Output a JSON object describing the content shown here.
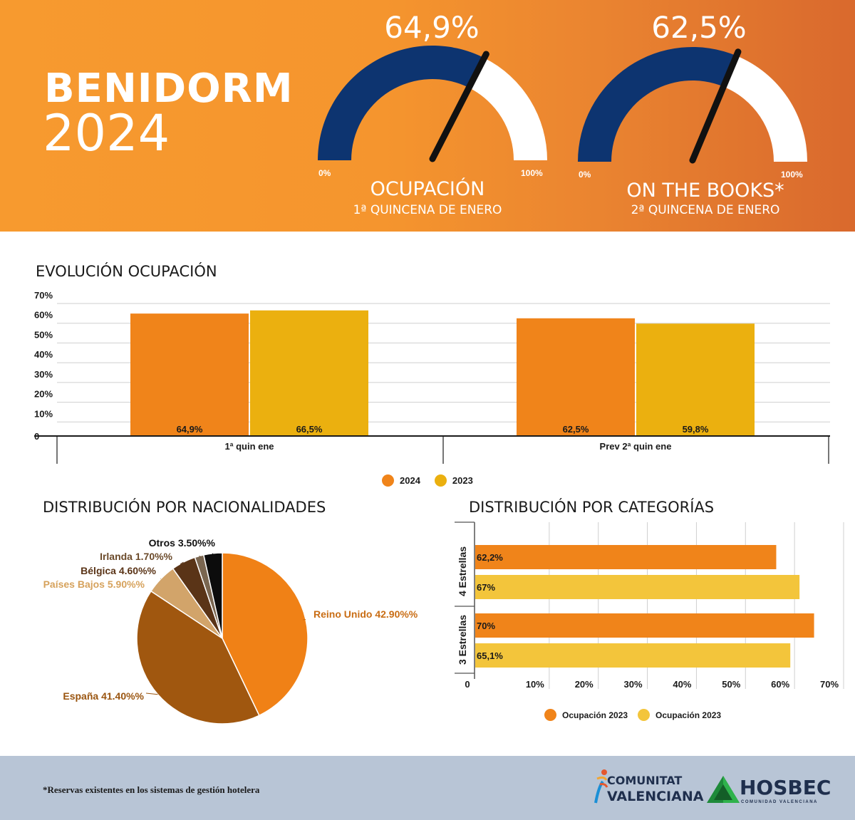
{
  "header": {
    "city": "BENIDORM",
    "year": "2024",
    "gauges": [
      {
        "value_label": "64,9%",
        "value": 64.9,
        "min_label": "0%",
        "max_label": "100%",
        "title": "OCUPACIÓN",
        "subtitle": "1ª QUINCENA DE ENERO"
      },
      {
        "value_label": "62,5%",
        "value": 62.5,
        "min_label": "0%",
        "max_label": "100%",
        "title": "ON THE BOOKS*",
        "subtitle": "2ª QUINCENA DE ENERO"
      }
    ],
    "colors": {
      "gauge_fill": "#0d3470",
      "gauge_rest": "#ffffff",
      "needle": "#111111"
    }
  },
  "evolution": {
    "title": "EVOLUCIÓN OCUPACIÓN",
    "legend": [
      {
        "label": "2024",
        "color": "#f0841a"
      },
      {
        "label": "2023",
        "color": "#ebb00f"
      }
    ]
  },
  "nationalities": {
    "title": "DISTRIBUCIÓN POR NACIONALIDADES"
  },
  "categories": {
    "title": "DISTRIBUCIÓN POR CATEGORÍAS",
    "legend": [
      {
        "label": "Ocupación 2023",
        "color": "#f0841a"
      },
      {
        "label": "Ocupación 2023",
        "color": "#f3c53b"
      }
    ]
  },
  "chart_data": [
    {
      "type": "bar",
      "title": "EVOLUCIÓN OCUPACIÓN",
      "categories": [
        "1ª quin ene",
        "Prev 2ª quin ene"
      ],
      "series": [
        {
          "name": "2024",
          "values": [
            64.9,
            62.5
          ],
          "labels": [
            "64,9%",
            "62,5%"
          ],
          "color": "#f0841a"
        },
        {
          "name": "2023",
          "values": [
            66.5,
            59.8
          ],
          "labels": [
            "66,5%",
            "59,8%"
          ],
          "color": "#ebb00f"
        }
      ],
      "y_ticks": [
        "0",
        "10%",
        "20%",
        "30%",
        "40%",
        "50%",
        "60%",
        "70%"
      ],
      "ylim": [
        0,
        70
      ],
      "grid": true,
      "legend_position": "bottom"
    },
    {
      "type": "pie",
      "title": "DISTRIBUCIÓN POR NACIONALIDADES",
      "slices": [
        {
          "name": "Reino Unido",
          "label": "Reino Unido 42.90%%",
          "value": 42.9,
          "color": "#f08116",
          "label_color": "#c96d14"
        },
        {
          "name": "España",
          "label": "España 41.40%%",
          "value": 41.4,
          "color": "#a0570f",
          "label_color": "#9a5510"
        },
        {
          "name": "Países Bajos",
          "label": "Países Bajos 5.90%%",
          "value": 5.9,
          "color": "#d2a46a",
          "label_color": "#d6a25c"
        },
        {
          "name": "Bélgica",
          "label": "Bélgica 4.60%%",
          "value": 4.6,
          "color": "#5a3417",
          "label_color": "#5a3417"
        },
        {
          "name": "Irlanda",
          "label": "Irlanda 1.70%%",
          "value": 1.7,
          "color": "#7a6650",
          "label_color": "#6b4a2a"
        },
        {
          "name": "Otros",
          "label": "Otros 3.50%%",
          "value": 3.5,
          "color": "#0c0c0c",
          "label_color": "#111111"
        }
      ]
    },
    {
      "type": "bar",
      "orientation": "horizontal",
      "title": "DISTRIBUCIÓN POR CATEGORÍAS",
      "categories": [
        "4 Estrellas",
        "3 Estrellas"
      ],
      "series": [
        {
          "name": "Ocupación 2023",
          "values": [
            62.2,
            70
          ],
          "labels": [
            "62,2%",
            "70%"
          ],
          "color": "#f0841a"
        },
        {
          "name": "Ocupación 2023",
          "values": [
            67,
            65.1
          ],
          "labels": [
            "67%",
            "65,1%"
          ],
          "color": "#f3c53b"
        }
      ],
      "x_ticks": [
        "0",
        "10%",
        "20%",
        "30%",
        "40%",
        "50%",
        "60%",
        "70%"
      ],
      "xlim": [
        0,
        70
      ],
      "grid": true,
      "legend_position": "bottom"
    }
  ],
  "footer": {
    "footnote": "*Reservas existentes en los sistemas de gestión hotelera",
    "logo_cv_line1": "COMUNITAT",
    "logo_cv_line2": "VALENCIANA",
    "logo_hosbec": "HOSBEC",
    "logo_hosbec_sub": "COMUNIDAD VALENCIANA"
  }
}
